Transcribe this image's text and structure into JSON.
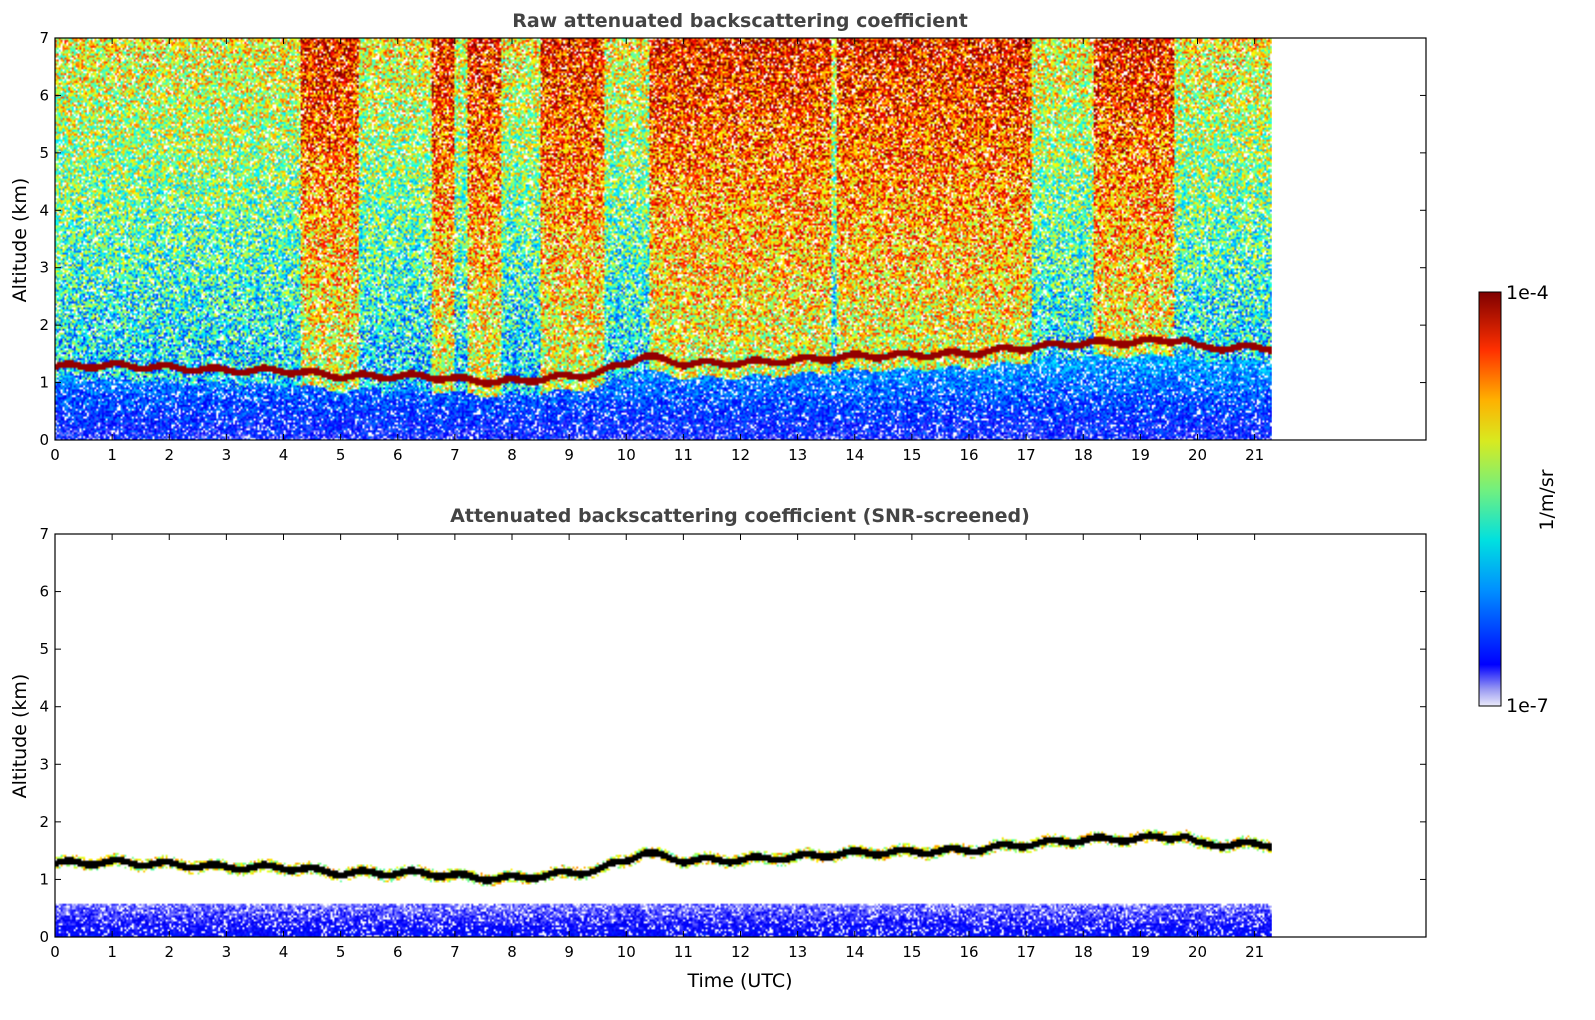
{
  "chart_data": [
    {
      "type": "heatmap",
      "title": "Raw attenuated backscattering coefficient",
      "xlabel": "",
      "ylabel": "Altitude (km)",
      "xlim": [
        0,
        24
      ],
      "ylim": [
        0,
        7
      ],
      "xticks": [
        "0",
        "1",
        "2",
        "3",
        "4",
        "5",
        "6",
        "7",
        "8",
        "9",
        "10",
        "11",
        "12",
        "13",
        "14",
        "15",
        "16",
        "17",
        "18",
        "19",
        "20",
        "21"
      ],
      "yticks": [
        "0",
        "1",
        "2",
        "3",
        "4",
        "5",
        "6",
        "7"
      ],
      "data_x_max": 21.3,
      "aerosol_layer_km": [
        [
          0,
          1.27
        ],
        [
          1,
          1.29
        ],
        [
          2,
          1.25
        ],
        [
          3,
          1.2
        ],
        [
          4,
          1.2
        ],
        [
          5,
          1.1
        ],
        [
          6.5,
          1.1
        ],
        [
          7,
          1.05
        ],
        [
          7.8,
          1.0
        ],
        [
          8.5,
          1.05
        ],
        [
          9.5,
          1.15
        ],
        [
          10.3,
          1.45
        ],
        [
          11,
          1.32
        ],
        [
          12,
          1.33
        ],
        [
          13,
          1.38
        ],
        [
          14,
          1.45
        ],
        [
          15,
          1.47
        ],
        [
          16,
          1.5
        ],
        [
          17,
          1.6
        ],
        [
          18,
          1.68
        ],
        [
          19,
          1.7
        ],
        [
          19.8,
          1.75
        ],
        [
          20,
          1.6
        ],
        [
          21.3,
          1.6
        ]
      ],
      "high_signal_time_ranges": [
        [
          4.3,
          5.3
        ],
        [
          6.6,
          7.0
        ],
        [
          7.2,
          7.8
        ],
        [
          8.5,
          9.6
        ],
        [
          10.4,
          13.6
        ],
        [
          13.7,
          17.1
        ],
        [
          18.2,
          19.6
        ]
      ],
      "colorbar": {
        "label": "1/m/sr",
        "min_label": "1e-7",
        "max_label": "1e-4",
        "colormap": "jet"
      }
    },
    {
      "type": "heatmap",
      "title": "Attenuated backscattering coefficient (SNR-screened)",
      "xlabel": "Time (UTC)",
      "ylabel": "Altitude (km)",
      "xlim": [
        0,
        24
      ],
      "ylim": [
        0,
        7
      ],
      "xticks": [
        "0",
        "1",
        "2",
        "3",
        "4",
        "5",
        "6",
        "7",
        "8",
        "9",
        "10",
        "11",
        "12",
        "13",
        "14",
        "15",
        "16",
        "17",
        "18",
        "19",
        "20",
        "21"
      ],
      "yticks": [
        "0",
        "1",
        "2",
        "3",
        "4",
        "5",
        "6",
        "7"
      ],
      "data_x_max": 21.3
    }
  ]
}
